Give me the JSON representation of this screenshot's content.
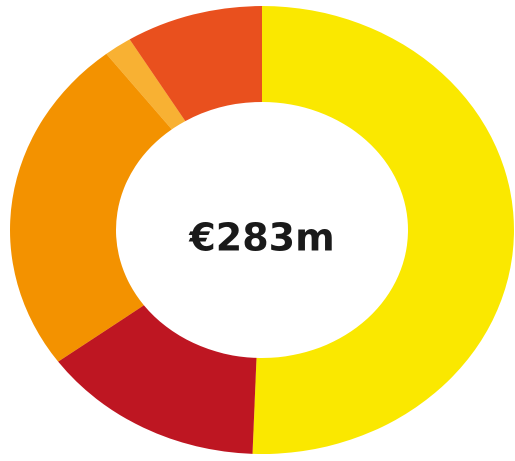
{
  "chart_data": {
    "type": "pie",
    "variant": "donut",
    "center_label": "€283m",
    "slices": [
      {
        "value": 50.6,
        "color": "#FAE800"
      },
      {
        "value": 14.4,
        "color": "#BE1622"
      },
      {
        "value": 24.4,
        "color": "#F39200"
      },
      {
        "value": 1.8,
        "color": "#F8B133"
      },
      {
        "value": 8.8,
        "color": "#E9501E"
      }
    ]
  }
}
